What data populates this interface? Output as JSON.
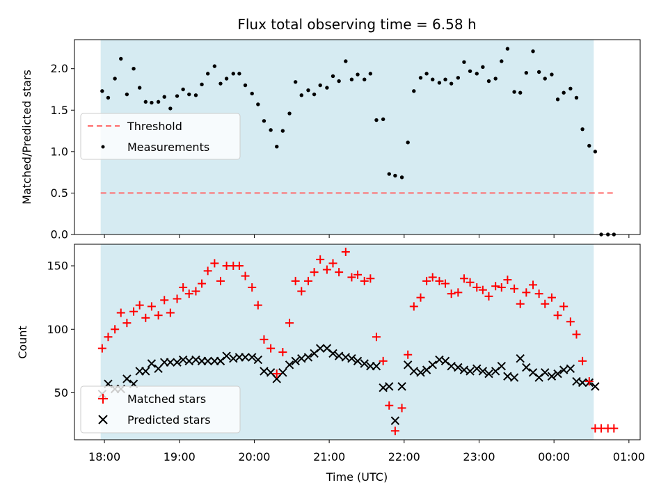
{
  "chart_data": [
    {
      "type": "scatter",
      "title": "Flux total observing time = 6.58 h",
      "xlabel": "",
      "ylabel": "Matched/Predicted stars",
      "ylim": [
        0,
        2.35
      ],
      "yticks": [
        0.0,
        0.5,
        1.0,
        1.5,
        2.0
      ],
      "ytick_labels": [
        "0.0",
        "0.5",
        "1.0",
        "1.5",
        "2.0"
      ],
      "xlim": [
        17.6,
        25.15
      ],
      "xticks": [
        18,
        19,
        20,
        21,
        22,
        23,
        24,
        25
      ],
      "shaded_span": [
        17.95,
        24.53
      ],
      "shade_color": "#add8e6",
      "threshold": {
        "name": "Threshold",
        "y": 0.5,
        "x_range": [
          17.95,
          24.8
        ],
        "color": "#ff6b6b"
      },
      "legend": {
        "position": "center-left",
        "entries": [
          "Threshold",
          "Measurements"
        ]
      },
      "series": [
        {
          "name": "Measurements",
          "color": "#000000",
          "x": [
            17.97,
            18.05,
            18.14,
            18.22,
            18.3,
            18.39,
            18.47,
            18.55,
            18.63,
            18.72,
            18.8,
            18.88,
            18.97,
            19.05,
            19.13,
            19.22,
            19.3,
            19.38,
            19.47,
            19.55,
            19.63,
            19.72,
            19.8,
            19.88,
            19.97,
            20.05,
            20.13,
            20.22,
            20.3,
            20.38,
            20.47,
            20.55,
            20.63,
            20.72,
            20.8,
            20.88,
            20.97,
            21.05,
            21.13,
            21.22,
            21.3,
            21.38,
            21.47,
            21.55,
            21.63,
            21.72,
            21.8,
            21.88,
            21.97,
            22.05,
            22.13,
            22.22,
            22.3,
            22.38,
            22.47,
            22.55,
            22.63,
            22.72,
            22.8,
            22.88,
            22.97,
            23.05,
            23.13,
            23.22,
            23.3,
            23.38,
            23.47,
            23.55,
            23.63,
            23.72,
            23.8,
            23.88,
            23.97,
            24.05,
            24.13,
            24.22,
            24.3,
            24.38,
            24.47,
            24.55,
            24.63,
            24.72,
            24.8
          ],
          "y": [
            1.73,
            1.65,
            1.88,
            2.12,
            1.69,
            2.0,
            1.77,
            1.6,
            1.59,
            1.6,
            1.66,
            1.52,
            1.67,
            1.75,
            1.69,
            1.68,
            1.81,
            1.94,
            2.03,
            1.82,
            1.88,
            1.94,
            1.94,
            1.8,
            1.7,
            1.57,
            1.37,
            1.26,
            1.06,
            1.25,
            1.46,
            1.84,
            1.68,
            1.74,
            1.69,
            1.8,
            1.77,
            1.91,
            1.85,
            2.09,
            1.87,
            1.93,
            1.87,
            1.94,
            1.38,
            1.39,
            0.73,
            0.71,
            0.69,
            1.11,
            1.73,
            1.89,
            1.94,
            1.87,
            1.83,
            1.87,
            1.82,
            1.89,
            2.08,
            1.97,
            1.94,
            2.02,
            1.85,
            1.88,
            2.09,
            2.24,
            1.72,
            1.71,
            1.95,
            2.21,
            1.96,
            1.88,
            1.93,
            1.63,
            1.71,
            1.76,
            1.65,
            1.27,
            1.07,
            1.0,
            0.0,
            0.0,
            0.0
          ]
        }
      ]
    },
    {
      "type": "scatter",
      "title": "",
      "xlabel": "Time (UTC)",
      "ylabel": "Count",
      "ylim": [
        13,
        167
      ],
      "yticks": [
        50,
        100,
        150
      ],
      "ytick_labels": [
        "50",
        "100",
        "150"
      ],
      "xlim": [
        17.6,
        25.15
      ],
      "xticks": [
        18,
        19,
        20,
        21,
        22,
        23,
        24,
        25
      ],
      "xtick_labels": [
        "18:00",
        "19:00",
        "20:00",
        "21:00",
        "22:00",
        "23:00",
        "00:00",
        "01:00"
      ],
      "shaded_span": [
        17.95,
        24.53
      ],
      "shade_color": "#add8e6",
      "legend": {
        "position": "lower-left",
        "entries": [
          "Matched stars",
          "Predicted stars"
        ]
      },
      "series": [
        {
          "name": "Matched stars",
          "marker": "+",
          "color": "#ff0000",
          "x": [
            17.97,
            18.05,
            18.14,
            18.22,
            18.3,
            18.39,
            18.47,
            18.55,
            18.63,
            18.72,
            18.8,
            18.88,
            18.97,
            19.05,
            19.13,
            19.22,
            19.3,
            19.38,
            19.47,
            19.55,
            19.63,
            19.72,
            19.8,
            19.88,
            19.97,
            20.05,
            20.13,
            20.22,
            20.3,
            20.38,
            20.47,
            20.55,
            20.63,
            20.72,
            20.8,
            20.88,
            20.97,
            21.05,
            21.13,
            21.22,
            21.3,
            21.38,
            21.47,
            21.55,
            21.63,
            21.72,
            21.8,
            21.88,
            21.97,
            22.05,
            22.13,
            22.22,
            22.3,
            22.38,
            22.47,
            22.55,
            22.63,
            22.72,
            22.8,
            22.88,
            22.97,
            23.05,
            23.13,
            23.22,
            23.3,
            23.38,
            23.47,
            23.55,
            23.63,
            23.72,
            23.8,
            23.88,
            23.97,
            24.05,
            24.13,
            24.22,
            24.3,
            24.38,
            24.47,
            24.55,
            24.63,
            24.72,
            24.8
          ],
          "y": [
            85,
            94,
            100,
            113,
            105,
            114,
            119,
            109,
            118,
            111,
            123,
            113,
            124,
            133,
            128,
            130,
            136,
            146,
            152,
            138,
            150,
            150,
            150,
            142,
            133,
            119,
            92,
            85,
            65,
            82,
            105,
            138,
            130,
            138,
            145,
            155,
            147,
            152,
            145,
            161,
            141,
            143,
            138,
            140,
            94,
            75,
            40,
            20,
            38,
            80,
            118,
            125,
            138,
            141,
            138,
            136,
            128,
            129,
            140,
            137,
            133,
            131,
            126,
            134,
            133,
            139,
            132,
            120,
            129,
            135,
            128,
            120,
            125,
            111,
            118,
            106,
            96,
            75,
            59,
            22,
            22,
            22,
            22
          ]
        },
        {
          "name": "Predicted stars",
          "marker": "x",
          "color": "#000000",
          "x": [
            17.97,
            18.05,
            18.14,
            18.22,
            18.3,
            18.39,
            18.47,
            18.55,
            18.63,
            18.72,
            18.8,
            18.88,
            18.97,
            19.05,
            19.13,
            19.22,
            19.3,
            19.38,
            19.47,
            19.55,
            19.63,
            19.72,
            19.8,
            19.88,
            19.97,
            20.05,
            20.13,
            20.22,
            20.3,
            20.38,
            20.47,
            20.55,
            20.63,
            20.72,
            20.8,
            20.88,
            20.97,
            21.05,
            21.13,
            21.22,
            21.3,
            21.38,
            21.47,
            21.55,
            21.63,
            21.72,
            21.8,
            21.88,
            21.97,
            22.05,
            22.13,
            22.22,
            22.3,
            22.38,
            22.47,
            22.55,
            22.63,
            22.72,
            22.8,
            22.88,
            22.97,
            23.05,
            23.13,
            23.22,
            23.3,
            23.38,
            23.47,
            23.55,
            23.63,
            23.72,
            23.8,
            23.88,
            23.97,
            24.05,
            24.13,
            24.22,
            24.3,
            24.38,
            24.47,
            24.55
          ],
          "y": [
            49,
            57,
            53,
            53,
            61,
            57,
            67,
            67,
            73,
            69,
            74,
            74,
            74,
            76,
            75,
            76,
            75,
            75,
            75,
            75,
            79,
            77,
            78,
            78,
            78,
            76,
            67,
            66,
            61,
            66,
            72,
            75,
            77,
            78,
            81,
            85,
            85,
            81,
            79,
            78,
            77,
            75,
            73,
            71,
            71,
            54,
            55,
            28,
            55,
            72,
            67,
            66,
            68,
            72,
            76,
            75,
            71,
            70,
            68,
            67,
            69,
            67,
            65,
            67,
            71,
            63,
            62,
            77,
            70,
            66,
            62,
            66,
            63,
            65,
            68,
            69,
            59,
            58,
            58,
            55
          ]
        }
      ]
    }
  ]
}
